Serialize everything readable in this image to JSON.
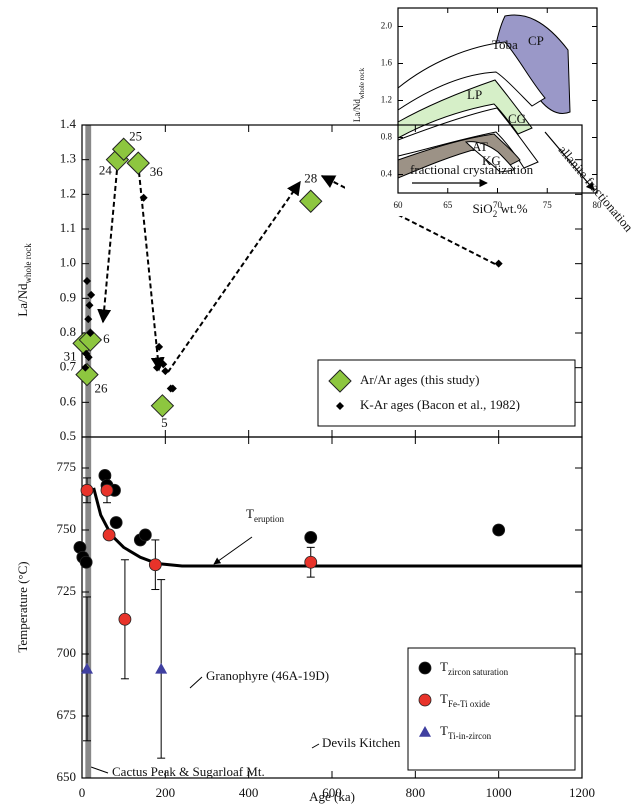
{
  "chart_data": [
    {
      "type": "scatter",
      "y_label": {
        "main": "La/Nd",
        "sub": "whole rock"
      },
      "xlim": [
        0,
        1200
      ],
      "ylim": [
        0.5,
        1.4
      ],
      "xticks": [
        0,
        200,
        400,
        600,
        800,
        1000,
        1200
      ],
      "yticks": [
        0.5,
        0.6,
        0.7,
        0.8,
        0.9,
        {
          "value": 1,
          "label": "1.0"
        },
        1.1,
        1.2,
        1.3,
        1.4
      ],
      "shaded_range": [
        8,
        22
      ],
      "series": [
        {
          "name": "Ar/Ar ages (this study)",
          "color": "#8dc63f",
          "marker": "diamond",
          "x": [
            5,
            12,
            20,
            85,
            100,
            135,
            193,
            549
          ],
          "values": [
            0.77,
            0.68,
            0.78,
            1.3,
            1.33,
            1.29,
            0.59,
            1.18
          ],
          "labels": [
            "31",
            "26",
            "6",
            "24",
            "25",
            "36",
            "5",
            "28"
          ]
        },
        {
          "name": "K-Ar ages (Bacon et al., 1982)",
          "color": "#000000",
          "marker": "small-diamond",
          "x": [
            12,
            18,
            22,
            15,
            20,
            10,
            8,
            16,
            148,
            180,
            185,
            195,
            200,
            213,
            218,
            1000
          ],
          "values": [
            0.95,
            0.88,
            0.91,
            0.84,
            0.8,
            0.74,
            0.7,
            0.73,
            1.19,
            0.7,
            0.76,
            0.71,
            0.69,
            0.64,
            0.64,
            1.0
          ]
        }
      ]
    },
    {
      "type": "scatter",
      "x_label": "Age (ka)",
      "y_label": "Temperature (°C)",
      "xlim": [
        0,
        1200
      ],
      "ylim": [
        650,
        787.5
      ],
      "xticks": [
        0,
        200,
        400,
        600,
        800,
        1000,
        1200
      ],
      "yticks": [
        650,
        675,
        700,
        725,
        750,
        775
      ],
      "shaded_range": [
        8,
        22
      ],
      "series": [
        {
          "name": "T",
          "name_sub": "zircon saturation",
          "color": "#000000",
          "marker": "circle",
          "x": [
            -5,
            2,
            10,
            55,
            60,
            78,
            82,
            140,
            152,
            549,
            1000
          ],
          "values": [
            743,
            739,
            737,
            772,
            768,
            766,
            753,
            746,
            748,
            747,
            750
          ]
        },
        {
          "name": "T",
          "name_sub": "Fe-Ti oxide",
          "color": "#e8332a",
          "marker": "circle",
          "x": [
            12,
            60,
            65,
            103,
            176,
            549
          ],
          "values": [
            766,
            766,
            748,
            714,
            736,
            737
          ],
          "errors": [
            5,
            5,
            null,
            24,
            10,
            6
          ]
        },
        {
          "name": "T",
          "name_sub": "Ti-in-zircon",
          "color": "#3f3fa0",
          "marker": "triangle",
          "x": [
            12,
            190
          ],
          "values": [
            694,
            694
          ],
          "errors": [
            29,
            36
          ]
        }
      ],
      "curve": {
        "x": [
          28,
          45,
          70,
          100,
          140,
          180,
          240,
          1200
        ],
        "values": [
          767,
          756,
          748,
          743,
          739,
          736.5,
          735.5,
          735.5
        ]
      },
      "curve_label": {
        "main": "T",
        "sub": "eruption"
      },
      "annotations": [
        "Devils Kitchen",
        "Granophyre (46A-19D)",
        "Cactus Peak & Sugarloaf Mt."
      ]
    },
    {
      "type": "inset",
      "x_label": {
        "main": "SiO",
        "sub": "2",
        "rest": " wt.%"
      },
      "y_label": {
        "main": "La/Nd",
        "sub": "whole rock"
      },
      "xlim": [
        60,
        80
      ],
      "ylim": [
        0.2,
        2.2
      ],
      "xticks": [
        60,
        65,
        70,
        75,
        80
      ],
      "yticks": [
        0.4,
        0.8,
        1.2,
        1.6,
        {
          "value": 2,
          "label": "2.0"
        }
      ],
      "annotations": [
        "Toba",
        "CP",
        "LP",
        "CG",
        "AT",
        "KG",
        "fractional crystalization",
        "allanite fractionation"
      ]
    }
  ]
}
